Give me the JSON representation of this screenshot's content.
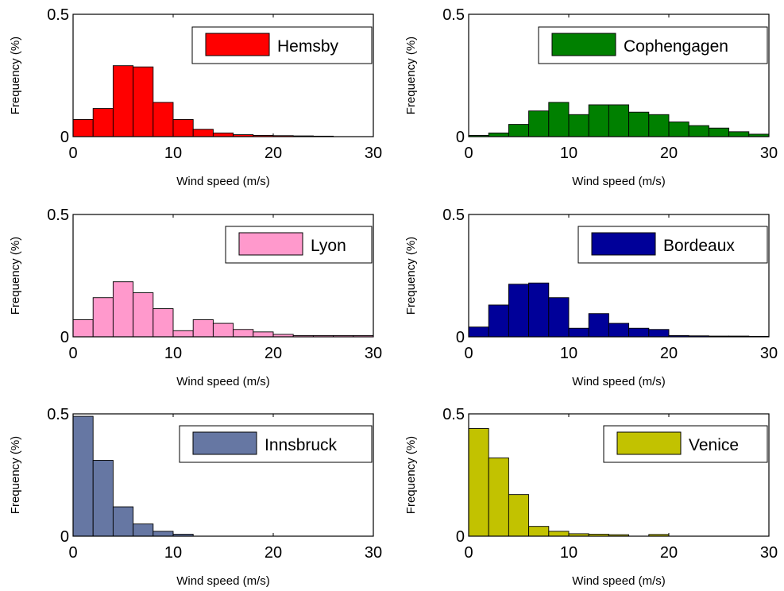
{
  "chart_data": [
    {
      "type": "bar",
      "series_name": "Hemsby",
      "color": "#ff0000",
      "xlabel": "Wind speed (m/s)",
      "ylabel": "Frequency (%)",
      "xlim": [
        0,
        30
      ],
      "ylim": [
        0,
        0.5
      ],
      "xticks": [
        "0",
        "10",
        "20",
        "30"
      ],
      "yticks": [
        "0",
        "0.5"
      ],
      "bin_width": 2,
      "x": [
        0,
        2,
        4,
        6,
        8,
        10,
        12,
        14,
        16,
        18,
        20,
        22,
        24
      ],
      "values": [
        0.07,
        0.115,
        0.29,
        0.285,
        0.14,
        0.07,
        0.03,
        0.015,
        0.008,
        0.005,
        0.004,
        0.003,
        0.002
      ]
    },
    {
      "type": "bar",
      "series_name": "Cophengagen",
      "color": "#008000",
      "xlabel": "Wind speed (m/s)",
      "ylabel": "Frequency (%)",
      "xlim": [
        0,
        30
      ],
      "ylim": [
        0,
        0.5
      ],
      "xticks": [
        "0",
        "10",
        "20",
        "30"
      ],
      "yticks": [
        "0",
        "0.5"
      ],
      "bin_width": 2,
      "x": [
        0,
        2,
        4,
        6,
        8,
        10,
        12,
        14,
        16,
        18,
        20,
        22,
        24,
        26,
        28
      ],
      "values": [
        0.005,
        0.015,
        0.05,
        0.105,
        0.14,
        0.09,
        0.13,
        0.13,
        0.1,
        0.09,
        0.06,
        0.045,
        0.035,
        0.02,
        0.01
      ]
    },
    {
      "type": "bar",
      "series_name": "Lyon",
      "color": "#ff99cc",
      "xlabel": "Wind speed (m/s)",
      "ylabel": "Frequency (%)",
      "xlim": [
        0,
        30
      ],
      "ylim": [
        0,
        0.5
      ],
      "xticks": [
        "0",
        "10",
        "20",
        "30"
      ],
      "yticks": [
        "0",
        "0.5"
      ],
      "bin_width": 2,
      "x": [
        0,
        2,
        4,
        6,
        8,
        10,
        12,
        14,
        16,
        18,
        20,
        22,
        24,
        26,
        28
      ],
      "values": [
        0.07,
        0.16,
        0.225,
        0.18,
        0.115,
        0.025,
        0.07,
        0.055,
        0.03,
        0.02,
        0.01,
        0.005,
        0.005,
        0.005,
        0.005
      ]
    },
    {
      "type": "bar",
      "series_name": "Bordeaux",
      "color": "#000099",
      "xlabel": "Wind speed (m/s)",
      "ylabel": "Frequency (%)",
      "xlim": [
        0,
        30
      ],
      "ylim": [
        0,
        0.5
      ],
      "xticks": [
        "0",
        "10",
        "20",
        "30"
      ],
      "yticks": [
        "0",
        "0.5"
      ],
      "bin_width": 2,
      "x": [
        0,
        2,
        4,
        6,
        8,
        10,
        12,
        14,
        16,
        18,
        20,
        22,
        24,
        26,
        28
      ],
      "values": [
        0.04,
        0.13,
        0.215,
        0.22,
        0.16,
        0.035,
        0.095,
        0.055,
        0.035,
        0.03,
        0.005,
        0.004,
        0.003,
        0.003,
        0.002
      ]
    },
    {
      "type": "bar",
      "series_name": "Innsbruck",
      "color": "#6677a3",
      "xlabel": "Wind speed (m/s)",
      "ylabel": "Frequency (%)",
      "xlim": [
        0,
        30
      ],
      "ylim": [
        0,
        0.5
      ],
      "xticks": [
        "0",
        "10",
        "20",
        "30"
      ],
      "yticks": [
        "0",
        "0.5"
      ],
      "bin_width": 2,
      "x": [
        0,
        2,
        4,
        6,
        8,
        10
      ],
      "values": [
        0.49,
        0.31,
        0.12,
        0.05,
        0.02,
        0.008
      ]
    },
    {
      "type": "bar",
      "series_name": "Venice",
      "color": "#c2c200",
      "xlabel": "Wind speed (m/s)",
      "ylabel": "Frequency (%)",
      "xlim": [
        0,
        30
      ],
      "ylim": [
        0,
        0.5
      ],
      "xticks": [
        "0",
        "10",
        "20",
        "30"
      ],
      "yticks": [
        "0",
        "0.5"
      ],
      "bin_width": 2,
      "x": [
        0,
        2,
        4,
        6,
        8,
        10,
        12,
        14,
        18
      ],
      "values": [
        0.44,
        0.32,
        0.17,
        0.04,
        0.02,
        0.01,
        0.008,
        0.006,
        0.007
      ]
    }
  ]
}
